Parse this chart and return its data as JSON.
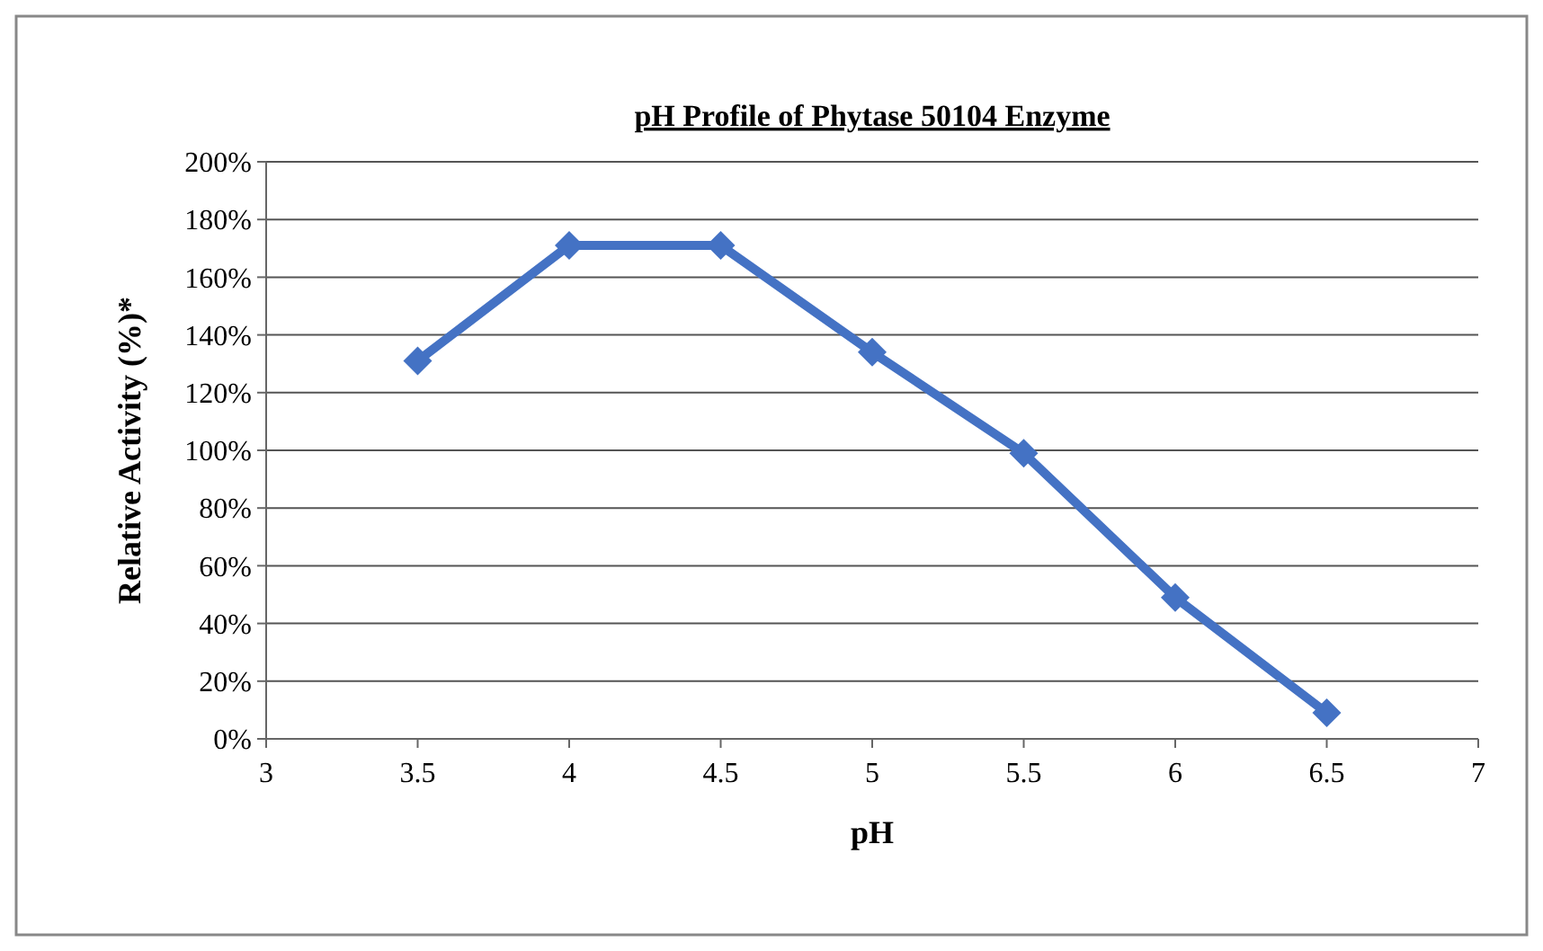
{
  "chart_data": {
    "type": "line",
    "title": "pH Profile of Phytase 50104 Enzyme",
    "xlabel": "pH",
    "ylabel": "Relative Activity (%)*",
    "x": [
      3.5,
      4,
      4.5,
      5,
      5.5,
      6,
      6.5
    ],
    "series": [
      {
        "color": "#4472c4",
        "values": [
          131,
          171,
          171,
          134,
          99,
          49,
          9
        ]
      }
    ],
    "xlim": [
      3,
      7
    ],
    "xticks": [
      3,
      3.5,
      4,
      4.5,
      5,
      5.5,
      6,
      6.5,
      7
    ],
    "ylim": [
      0,
      200
    ],
    "yticks": [
      {
        "value": 0,
        "label": "0%"
      },
      {
        "value": 20,
        "label": "20%"
      },
      {
        "value": 40,
        "label": "40%"
      },
      {
        "value": 60,
        "label": "60%"
      },
      {
        "value": 80,
        "label": "80%"
      },
      {
        "value": 100,
        "label": "100%"
      },
      {
        "value": 120,
        "label": "120%"
      },
      {
        "value": 140,
        "label": "140%"
      },
      {
        "value": 160,
        "label": "160%"
      },
      {
        "value": 180,
        "label": "180%"
      },
      {
        "value": 200,
        "label": "200%"
      }
    ],
    "grid": "y",
    "marker": "diamond",
    "line_style": "solid"
  }
}
